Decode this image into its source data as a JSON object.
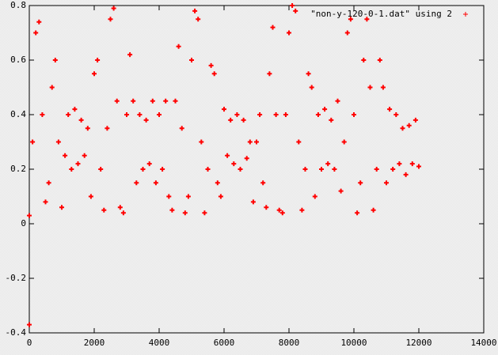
{
  "chart_data": {
    "type": "scatter",
    "x": [
      0,
      0,
      100,
      200,
      300,
      400,
      500,
      600,
      700,
      800,
      900,
      1000,
      1100,
      1200,
      1300,
      1400,
      1500,
      1600,
      1700,
      1800,
      1900,
      2000,
      2100,
      2200,
      2300,
      2400,
      2500,
      2600,
      2700,
      2800,
      2900,
      3000,
      3100,
      3200,
      3300,
      3400,
      3500,
      3600,
      3700,
      3800,
      3900,
      4000,
      4100,
      4200,
      4300,
      4400,
      4500,
      4600,
      4700,
      4800,
      4900,
      5000,
      5100,
      5200,
      5300,
      5400,
      5500,
      5600,
      5700,
      5800,
      5900,
      6000,
      6100,
      6200,
      6300,
      6400,
      6500,
      6600,
      6700,
      6800,
      6900,
      7000,
      7100,
      7200,
      7300,
      7400,
      7500,
      7600,
      7700,
      7800,
      7900,
      8000,
      8100,
      8200,
      8300,
      8400,
      8500,
      8600,
      8700,
      8800,
      8900,
      9000,
      9100,
      9200,
      9300,
      9400,
      9500,
      9600,
      9700,
      9800,
      9900,
      10000,
      10100,
      10200,
      10300,
      10400,
      10500,
      10600,
      10700,
      10800,
      10900,
      11000,
      11100,
      11200,
      11300,
      11400,
      11500,
      11600,
      11700,
      11800,
      11900,
      12000
    ],
    "series": [
      {
        "name": "\"non-y-120-0-1.dat\" using 2",
        "color": "#ff0000",
        "values": [
          -0.37,
          0.03,
          0.3,
          0.7,
          0.74,
          0.4,
          0.08,
          0.15,
          0.5,
          0.6,
          0.3,
          0.06,
          0.25,
          0.4,
          0.2,
          0.42,
          0.22,
          0.38,
          0.25,
          0.35,
          0.1,
          0.55,
          0.6,
          0.2,
          0.05,
          0.35,
          0.75,
          0.79,
          0.45,
          0.06,
          0.04,
          0.4,
          0.62,
          0.45,
          0.15,
          0.4,
          0.2,
          0.38,
          0.22,
          0.45,
          0.15,
          0.4,
          0.2,
          0.45,
          0.1,
          0.05,
          0.45,
          0.65,
          0.35,
          0.04,
          0.1,
          0.6,
          0.78,
          0.75,
          0.3,
          0.04,
          0.2,
          0.58,
          0.55,
          0.15,
          0.1,
          0.42,
          0.25,
          0.38,
          0.22,
          0.4,
          0.2,
          0.38,
          0.24,
          0.3,
          0.08,
          0.3,
          0.4,
          0.15,
          0.06,
          0.55,
          0.72,
          0.4,
          0.05,
          0.04,
          0.4,
          0.7,
          0.8,
          0.78,
          0.3,
          0.05,
          0.2,
          0.55,
          0.5,
          0.1,
          0.4,
          0.2,
          0.42,
          0.22,
          0.38,
          0.2,
          0.45,
          0.12,
          0.3,
          0.7,
          0.75,
          0.4,
          0.04,
          0.15,
          0.6,
          0.75,
          0.5,
          0.05,
          0.2,
          0.6,
          0.5,
          0.15,
          0.42,
          0.2,
          0.4,
          0.22,
          0.35,
          0.18,
          0.36,
          0.22,
          0.38,
          0.21
        ]
      }
    ],
    "xlim": [
      0,
      14000
    ],
    "ylim": [
      -0.4,
      0.8
    ],
    "xticks": [
      0,
      2000,
      4000,
      6000,
      8000,
      10000,
      12000,
      14000
    ],
    "yticks": [
      -0.4,
      -0.2,
      0,
      0.2,
      0.4,
      0.6,
      0.8
    ],
    "legend": "top-right"
  }
}
